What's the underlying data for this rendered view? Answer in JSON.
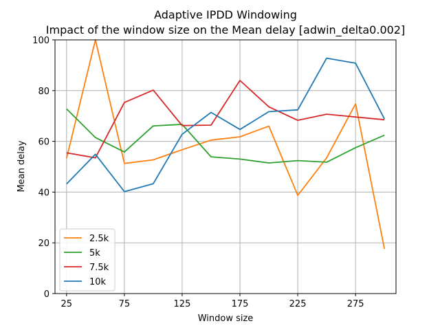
{
  "chart_data": {
    "type": "line",
    "title": "Adaptive IPDD Windowing",
    "subtitle": "Impact of the window size on the Mean delay [adwin_delta0.002]",
    "xlabel": "Window size",
    "ylabel": "Mean delay",
    "x": [
      25,
      50,
      75,
      100,
      125,
      150,
      175,
      200,
      225,
      250,
      275,
      300
    ],
    "xticks": [
      25,
      75,
      125,
      175,
      225,
      275
    ],
    "yticks": [
      0,
      20,
      40,
      60,
      80,
      100
    ],
    "xlim": [
      15,
      310
    ],
    "ylim": [
      0,
      100
    ],
    "grid": true,
    "legend_position": "lower-left",
    "series": [
      {
        "name": "2.5k",
        "color": "#ff7f0e",
        "values": [
          53.3,
          100.0,
          51.3,
          52.7,
          56.7,
          60.5,
          61.8,
          66.0,
          38.7,
          53.5,
          74.8,
          17.6
        ]
      },
      {
        "name": "5k",
        "color": "#2ca02c",
        "values": [
          72.8,
          61.5,
          55.8,
          66.1,
          66.7,
          53.9,
          53.0,
          51.5,
          52.4,
          51.8,
          57.5,
          62.4
        ]
      },
      {
        "name": "7.5k",
        "color": "#d62728",
        "values": [
          55.5,
          53.5,
          75.3,
          80.2,
          66.2,
          66.4,
          84.0,
          73.6,
          68.3,
          70.7,
          69.6,
          68.5
        ]
      },
      {
        "name": "10k",
        "color": "#1f77b4",
        "values": [
          43.2,
          54.9,
          40.2,
          43.3,
          62.8,
          71.4,
          64.7,
          71.7,
          72.4,
          92.8,
          90.8,
          68.8
        ]
      }
    ]
  }
}
